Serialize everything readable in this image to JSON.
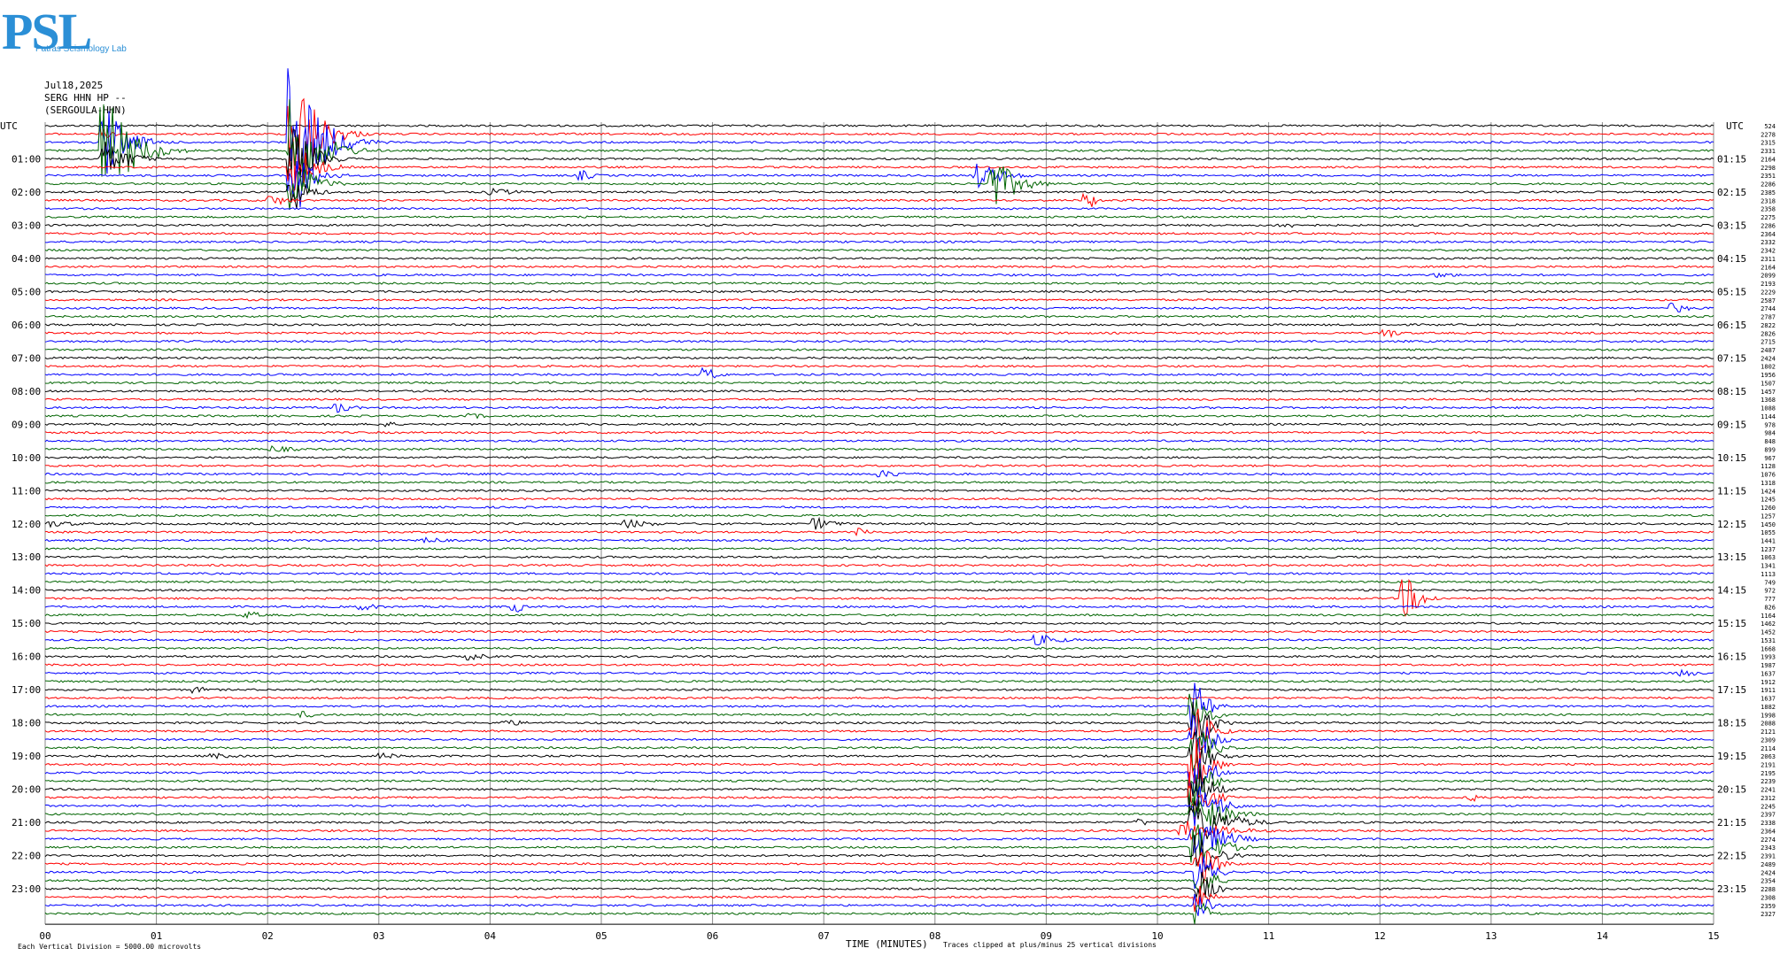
{
  "header": {
    "date": "Jul18,2025",
    "station": "SERG HHN HP --",
    "station_long": "(SERGOULA-HHN)",
    "utc_left": "UTC",
    "utc_right": "UTC"
  },
  "logo": {
    "text": "PSL",
    "subtitle": "Patras Seismology Lab"
  },
  "footer": {
    "scale_note": "Each Vertical Division = 5000.00 microvolts",
    "xaxis_title": "TIME (MINUTES)",
    "clip_note": "Traces clipped at plus/minus 25 vertical divisions"
  },
  "colors": {
    "cycle": [
      "#000000",
      "#ff0000",
      "#0000ff",
      "#006400"
    ],
    "grid": "#8a8a8a",
    "logo": "#2b8fd6"
  },
  "chart_data": {
    "type": "line",
    "title": "",
    "xlabel": "TIME (MINUTES)",
    "x_ticks": [
      "00",
      "01",
      "02",
      "03",
      "04",
      "05",
      "06",
      "07",
      "08",
      "09",
      "10",
      "11",
      "12",
      "13",
      "14",
      "15"
    ],
    "xlim": [
      0,
      15
    ],
    "left_labels": [
      "01:00",
      "02:00",
      "03:00",
      "04:00",
      "05:00",
      "06:00",
      "07:00",
      "08:00",
      "09:00",
      "10:00",
      "11:00",
      "12:00",
      "13:00",
      "14:00",
      "15:00",
      "16:00",
      "17:00",
      "18:00",
      "19:00",
      "20:00",
      "21:00",
      "22:00",
      "23:00"
    ],
    "right_labels": [
      "01:15",
      "02:15",
      "03:15",
      "04:15",
      "05:15",
      "06:15",
      "07:15",
      "08:15",
      "09:15",
      "10:15",
      "11:15",
      "12:15",
      "13:15",
      "14:15",
      "15:15",
      "16:15",
      "17:15",
      "18:15",
      "19:15",
      "20:15",
      "21:15",
      "22:15",
      "23:15"
    ],
    "trace_count": 96,
    "trace_minutes": 15,
    "right_values": [
      524,
      2278,
      2315,
      2331,
      2164,
      2298,
      2351,
      2286,
      2385,
      2318,
      2358,
      2275,
      2286,
      2364,
      2332,
      2342,
      2311,
      2164,
      2099,
      2193,
      2229,
      2587,
      2744,
      2787,
      2822,
      2826,
      2715,
      2487,
      2424,
      1802,
      1956,
      1507,
      1457,
      1368,
      1088,
      1144,
      978,
      984,
      848,
      899,
      967,
      1128,
      1076,
      1318,
      1424,
      1245,
      1260,
      1257,
      1450,
      1055,
      1441,
      1237,
      1063,
      1341,
      1113,
      749,
      972,
      777,
      826,
      1164,
      1462,
      1452,
      1531,
      1668,
      1993,
      1987,
      1637,
      1912,
      1911,
      1637,
      1882,
      1998,
      2088,
      2121,
      2309,
      2114,
      2063,
      2191,
      2195,
      2239,
      2241,
      2312,
      2245,
      2397,
      2338,
      2364,
      2274,
      2343,
      2391,
      2489,
      2424,
      2354,
      2288,
      2308,
      2359,
      2327
    ],
    "events": [
      {
        "trace": 1,
        "minute": 0.5,
        "amp": 5,
        "dur": 0.6
      },
      {
        "trace": 2,
        "minute": 0.5,
        "amp": 40,
        "dur": 0.9
      },
      {
        "trace": 3,
        "minute": 0.5,
        "amp": 60,
        "dur": 1.1
      },
      {
        "trace": 4,
        "minute": 0.5,
        "amp": 20,
        "dur": 1.0
      },
      {
        "trace": 1,
        "minute": 2.2,
        "amp": 75,
        "dur": 0.9
      },
      {
        "trace": 2,
        "minute": 2.2,
        "amp": 90,
        "dur": 1.0
      },
      {
        "trace": 3,
        "minute": 2.2,
        "amp": 60,
        "dur": 1.0
      },
      {
        "trace": 4,
        "minute": 2.2,
        "amp": 35,
        "dur": 0.8
      },
      {
        "trace": 5,
        "minute": 2.2,
        "amp": 30,
        "dur": 0.8
      },
      {
        "trace": 6,
        "minute": 2.2,
        "amp": 30,
        "dur": 0.8
      },
      {
        "trace": 7,
        "minute": 2.2,
        "amp": 30,
        "dur": 0.8
      },
      {
        "trace": 8,
        "minute": 2.2,
        "amp": 20,
        "dur": 0.6
      },
      {
        "trace": 9,
        "minute": 2.0,
        "amp": 6,
        "dur": 0.8
      },
      {
        "trace": 6,
        "minute": 8.35,
        "amp": 14,
        "dur": 1.1
      },
      {
        "trace": 7,
        "minute": 8.5,
        "amp": 28,
        "dur": 0.9
      },
      {
        "trace": 6,
        "minute": 4.8,
        "amp": 6,
        "dur": 0.4
      },
      {
        "trace": 9,
        "minute": 9.35,
        "amp": 8,
        "dur": 0.3
      },
      {
        "trace": 8,
        "minute": 4.0,
        "amp": 4,
        "dur": 1.2
      },
      {
        "trace": 12,
        "minute": 11.1,
        "amp": 3,
        "dur": 1.5
      },
      {
        "trace": 18,
        "minute": 12.5,
        "amp": 3,
        "dur": 1.0
      },
      {
        "trace": 22,
        "minute": 14.6,
        "amp": 6,
        "dur": 0.7
      },
      {
        "trace": 42,
        "minute": 7.5,
        "amp": 4,
        "dur": 1.4
      },
      {
        "trace": 30,
        "minute": 5.9,
        "amp": 8,
        "dur": 0.5
      },
      {
        "trace": 25,
        "minute": 12.0,
        "amp": 7,
        "dur": 0.5
      },
      {
        "trace": 34,
        "minute": 2.6,
        "amp": 6,
        "dur": 0.6
      },
      {
        "trace": 36,
        "minute": 3.0,
        "amp": 4,
        "dur": 0.6
      },
      {
        "trace": 35,
        "minute": 3.8,
        "amp": 3,
        "dur": 0.9
      },
      {
        "trace": 39,
        "minute": 2.0,
        "amp": 4,
        "dur": 1.2
      },
      {
        "trace": 48,
        "minute": 0.0,
        "amp": 4,
        "dur": 1.3
      },
      {
        "trace": 48,
        "minute": 5.2,
        "amp": 5,
        "dur": 1.2
      },
      {
        "trace": 48,
        "minute": 6.9,
        "amp": 7,
        "dur": 0.8
      },
      {
        "trace": 49,
        "minute": 7.3,
        "amp": 5,
        "dur": 0.5
      },
      {
        "trace": 50,
        "minute": 3.4,
        "amp": 4,
        "dur": 0.8
      },
      {
        "trace": 58,
        "minute": 4.2,
        "amp": 6,
        "dur": 0.3
      },
      {
        "trace": 58,
        "minute": 2.8,
        "amp": 4,
        "dur": 1.0
      },
      {
        "trace": 59,
        "minute": 1.8,
        "amp": 4,
        "dur": 0.6
      },
      {
        "trace": 57,
        "minute": 12.2,
        "amp": 22,
        "dur": 0.6
      },
      {
        "trace": 62,
        "minute": 8.9,
        "amp": 6,
        "dur": 1.1
      },
      {
        "trace": 64,
        "minute": 3.8,
        "amp": 4,
        "dur": 0.8
      },
      {
        "trace": 66,
        "minute": 14.7,
        "amp": 5,
        "dur": 0.5
      },
      {
        "trace": 68,
        "minute": 1.3,
        "amp": 4,
        "dur": 0.7
      },
      {
        "trace": 71,
        "minute": 2.3,
        "amp": 4,
        "dur": 0.7
      },
      {
        "trace": 72,
        "minute": 4.1,
        "amp": 4,
        "dur": 1.0
      },
      {
        "trace": 76,
        "minute": 3.0,
        "amp": 4,
        "dur": 0.7
      },
      {
        "trace": 76,
        "minute": 1.5,
        "amp": 3,
        "dur": 1.1
      },
      {
        "trace": 81,
        "minute": 12.8,
        "amp": 4,
        "dur": 0.6
      },
      {
        "trace": 84,
        "minute": 9.8,
        "amp": 4,
        "dur": 0.7
      },
      {
        "trace": 85,
        "minute": 10.2,
        "amp": 12,
        "dur": 1.8
      },
      {
        "trace": 84,
        "minute": 10.3,
        "amp": 30,
        "dur": 1.2
      },
      {
        "trace": 86,
        "minute": 10.3,
        "amp": 30,
        "dur": 1.0
      },
      {
        "trace": 83,
        "minute": 10.3,
        "amp": 28,
        "dur": 1.0
      },
      {
        "trace": 82,
        "minute": 10.35,
        "amp": 24,
        "dur": 0.8
      },
      {
        "trace": 87,
        "minute": 10.3,
        "amp": 28,
        "dur": 0.9
      },
      {
        "trace": 88,
        "minute": 10.35,
        "amp": 24,
        "dur": 0.7
      },
      {
        "trace": 89,
        "minute": 10.35,
        "amp": 24,
        "dur": 0.6
      },
      {
        "trace": 90,
        "minute": 10.35,
        "amp": 22,
        "dur": 0.5
      },
      {
        "trace": 91,
        "minute": 10.35,
        "amp": 20,
        "dur": 0.5
      },
      {
        "trace": 92,
        "minute": 10.35,
        "amp": 20,
        "dur": 0.5
      },
      {
        "trace": 93,
        "minute": 10.35,
        "amp": 18,
        "dur": 0.4
      },
      {
        "trace": 94,
        "minute": 10.35,
        "amp": 16,
        "dur": 0.4
      },
      {
        "trace": 95,
        "minute": 10.35,
        "amp": 14,
        "dur": 0.4
      },
      {
        "trace": 72,
        "minute": 10.3,
        "amp": 30,
        "dur": 0.6
      },
      {
        "trace": 73,
        "minute": 10.3,
        "amp": 30,
        "dur": 0.6
      },
      {
        "trace": 74,
        "minute": 10.3,
        "amp": 30,
        "dur": 0.6
      },
      {
        "trace": 75,
        "minute": 10.3,
        "amp": 30,
        "dur": 0.6
      },
      {
        "trace": 76,
        "minute": 10.3,
        "amp": 30,
        "dur": 0.6
      },
      {
        "trace": 77,
        "minute": 10.3,
        "amp": 30,
        "dur": 0.6
      },
      {
        "trace": 78,
        "minute": 10.3,
        "amp": 30,
        "dur": 0.6
      },
      {
        "trace": 79,
        "minute": 10.3,
        "amp": 30,
        "dur": 0.6
      },
      {
        "trace": 80,
        "minute": 10.3,
        "amp": 30,
        "dur": 0.6
      },
      {
        "trace": 81,
        "minute": 10.3,
        "amp": 30,
        "dur": 0.6
      },
      {
        "trace": 70,
        "minute": 10.3,
        "amp": 28,
        "dur": 0.5
      },
      {
        "trace": 71,
        "minute": 10.3,
        "amp": 28,
        "dur": 0.5
      }
    ]
  }
}
